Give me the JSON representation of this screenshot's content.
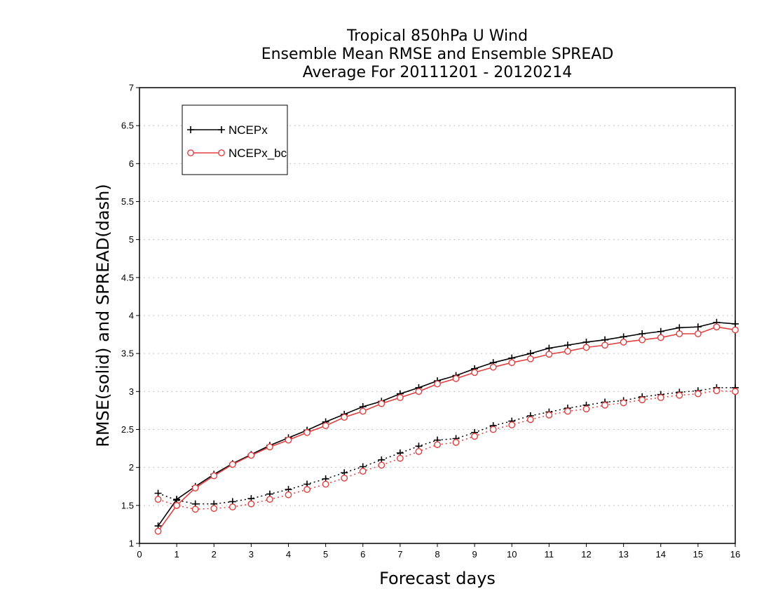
{
  "chart_data": {
    "type": "line",
    "title_lines": [
      "Tropical 850hPa U Wind",
      "Ensemble Mean RMSE and Ensemble SPREAD",
      "Average For 20111201 - 20120214"
    ],
    "xlabel": "Forecast days",
    "ylabel": "RMSE(solid) and SPREAD(dash)",
    "xlim": [
      0,
      16
    ],
    "ylim": [
      1,
      7
    ],
    "x_ticks": [
      0,
      1,
      2,
      3,
      4,
      5,
      6,
      7,
      8,
      9,
      10,
      11,
      12,
      13,
      14,
      15,
      16
    ],
    "y_ticks": [
      1,
      1.5,
      2,
      2.5,
      3,
      3.5,
      4,
      4.5,
      5,
      5.5,
      6,
      6.5,
      7
    ],
    "y_tick_labels": [
      "1",
      "1.5",
      "2",
      "2.5",
      "3",
      "3.5",
      "4",
      "4.5",
      "5",
      "5.5",
      "6",
      "6.5",
      "7"
    ],
    "grid": "horizontal-dotted",
    "legend_position": "top-left",
    "x": [
      0.5,
      1,
      1.5,
      2,
      2.5,
      3,
      3.5,
      4,
      4.5,
      5,
      5.5,
      6,
      6.5,
      7,
      7.5,
      8,
      8.5,
      9,
      9.5,
      10,
      10.5,
      11,
      11.5,
      12,
      12.5,
      13,
      13.5,
      14,
      14.5,
      15,
      15.5,
      16
    ],
    "series": [
      {
        "name": "NCEPx",
        "metric": "RMSE",
        "style": "solid",
        "marker": "plus",
        "color": "#000000",
        "values": [
          1.23,
          1.58,
          1.75,
          1.91,
          2.05,
          2.17,
          2.29,
          2.39,
          2.49,
          2.6,
          2.7,
          2.8,
          2.87,
          2.97,
          3.05,
          3.14,
          3.21,
          3.3,
          3.38,
          3.44,
          3.5,
          3.57,
          3.61,
          3.65,
          3.68,
          3.72,
          3.76,
          3.79,
          3.84,
          3.85,
          3.91,
          3.89
        ],
        "show_in_legend": true
      },
      {
        "name": "NCEPx_bc",
        "metric": "RMSE",
        "style": "solid",
        "marker": "circle",
        "color": "#e04040",
        "values": [
          1.16,
          1.5,
          1.73,
          1.89,
          2.04,
          2.16,
          2.27,
          2.36,
          2.46,
          2.55,
          2.66,
          2.74,
          2.84,
          2.92,
          3.0,
          3.1,
          3.17,
          3.25,
          3.32,
          3.38,
          3.43,
          3.49,
          3.53,
          3.58,
          3.61,
          3.65,
          3.68,
          3.71,
          3.76,
          3.76,
          3.85,
          3.81
        ],
        "show_in_legend": true
      },
      {
        "name": "NCEPx",
        "metric": "SPREAD",
        "style": "dotted",
        "marker": "plus",
        "color": "#000000",
        "values": [
          1.66,
          1.57,
          1.52,
          1.52,
          1.55,
          1.59,
          1.65,
          1.71,
          1.78,
          1.85,
          1.93,
          2.01,
          2.1,
          2.19,
          2.28,
          2.36,
          2.38,
          2.46,
          2.55,
          2.61,
          2.68,
          2.73,
          2.78,
          2.82,
          2.86,
          2.88,
          2.93,
          2.96,
          2.99,
          3.01,
          3.05,
          3.05
        ],
        "show_in_legend": false
      },
      {
        "name": "NCEPx_bc",
        "metric": "SPREAD",
        "style": "dotted",
        "marker": "circle",
        "color": "#e04040",
        "values": [
          1.58,
          1.5,
          1.45,
          1.46,
          1.48,
          1.52,
          1.58,
          1.64,
          1.71,
          1.78,
          1.86,
          1.95,
          2.03,
          2.12,
          2.21,
          2.3,
          2.33,
          2.41,
          2.5,
          2.56,
          2.63,
          2.69,
          2.74,
          2.77,
          2.82,
          2.85,
          2.89,
          2.92,
          2.95,
          2.97,
          3.01,
          3.0
        ],
        "show_in_legend": false
      }
    ]
  }
}
